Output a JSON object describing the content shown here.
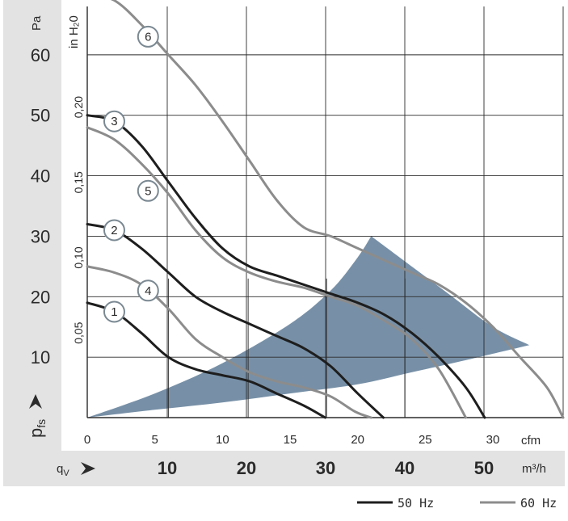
{
  "chart_data": {
    "type": "line",
    "y_axis_left": {
      "unit": "Pa",
      "ticks": [
        "10",
        "20",
        "30",
        "40",
        "50",
        "60"
      ],
      "range": [
        0,
        68
      ]
    },
    "y_axis_inner": {
      "unit": "in H₂0",
      "ticks": [
        "0,05",
        "0,10",
        "0,15",
        "0,20"
      ]
    },
    "x_axis_top": {
      "unit": "cfm",
      "ticks": [
        "0",
        "5",
        "10",
        "15",
        "20",
        "25",
        "30"
      ],
      "range": [
        0,
        35.2
      ]
    },
    "x_axis_bottom": {
      "unit": "m³/h",
      "ticks": [
        "10",
        "20",
        "30",
        "40",
        "50"
      ]
    },
    "axis_symbols": {
      "pressure": "p",
      "pressure_sub": "fs",
      "flow": "q",
      "flow_sub": "V"
    },
    "series": [
      {
        "name": "1",
        "group": "50 Hz",
        "x": [
          0,
          2,
          4,
          6,
          8,
          10,
          12,
          14,
          16,
          17.6
        ],
        "y": [
          19,
          17.5,
          14,
          10,
          8,
          7,
          6,
          4,
          2,
          0
        ]
      },
      {
        "name": "2",
        "group": "50 Hz",
        "x": [
          0,
          2,
          4,
          6,
          8,
          10,
          12,
          14,
          16,
          18,
          20,
          21.9
        ],
        "y": [
          32,
          31,
          28,
          24,
          20,
          17.5,
          15.5,
          13.5,
          11.5,
          8.5,
          4,
          0
        ]
      },
      {
        "name": "3",
        "group": "50 Hz",
        "x": [
          0,
          2,
          4,
          6,
          8,
          10,
          12,
          14,
          16,
          18,
          20,
          22,
          24,
          26,
          28,
          29.4
        ],
        "y": [
          50,
          49,
          45,
          39,
          33,
          28,
          25,
          23.5,
          22,
          20.5,
          19,
          17,
          14,
          10,
          5,
          0
        ]
      },
      {
        "name": "4",
        "group": "60 Hz",
        "x": [
          0,
          2,
          4,
          6,
          8,
          10,
          12,
          14,
          16,
          18,
          19.8,
          21
        ],
        "y": [
          25,
          24,
          22,
          18,
          13,
          10,
          7.5,
          6,
          5,
          3.5,
          1,
          0
        ]
      },
      {
        "name": "5",
        "group": "60 Hz",
        "x": [
          0,
          2,
          4,
          6,
          8,
          10,
          12,
          14,
          16,
          18,
          20,
          22,
          24,
          26,
          28
        ],
        "y": [
          48,
          46,
          42,
          37,
          31,
          26.5,
          24,
          22.5,
          21.5,
          20,
          18.5,
          16,
          13,
          8,
          0
        ]
      },
      {
        "name": "6",
        "group": "60 Hz",
        "x": [
          0,
          2,
          4,
          6,
          8,
          10,
          12,
          14,
          16,
          18,
          20,
          22,
          24,
          26,
          28,
          30,
          32,
          34,
          35.2
        ],
        "y": [
          70,
          69,
          65,
          60,
          55,
          49,
          42.5,
          36,
          31.5,
          30,
          28,
          26,
          24,
          22,
          19,
          15,
          10,
          5,
          0
        ]
      }
    ],
    "shaded_region": {
      "color": "#7790a7",
      "upper": {
        "x": [
          0,
          5,
          10,
          15,
          18,
          20,
          21
        ],
        "y": [
          0,
          4,
          9,
          15.5,
          21,
          26.5,
          30
        ]
      },
      "outer": {
        "x": [
          21,
          24,
          27,
          30,
          32.7
        ],
        "y": [
          30,
          25,
          20,
          15,
          12
        ]
      },
      "lower": {
        "x": [
          32.7,
          28,
          24,
          20,
          15,
          10,
          5,
          0
        ],
        "y": [
          12,
          9.5,
          7.5,
          5.5,
          4,
          2.5,
          1.3,
          0
        ]
      }
    },
    "grid": true,
    "colors": {
      "50 Hz": "#1e1e1e",
      "60 Hz": "#8c8c8c",
      "panel": "#e3e3e3",
      "grid": "#2b2b2b"
    },
    "legend": {
      "position": "bottom-right",
      "items": [
        {
          "label": "50 Hz",
          "color": "#1e1e1e"
        },
        {
          "label": "60 Hz",
          "color": "#8c8c8c"
        }
      ]
    }
  }
}
